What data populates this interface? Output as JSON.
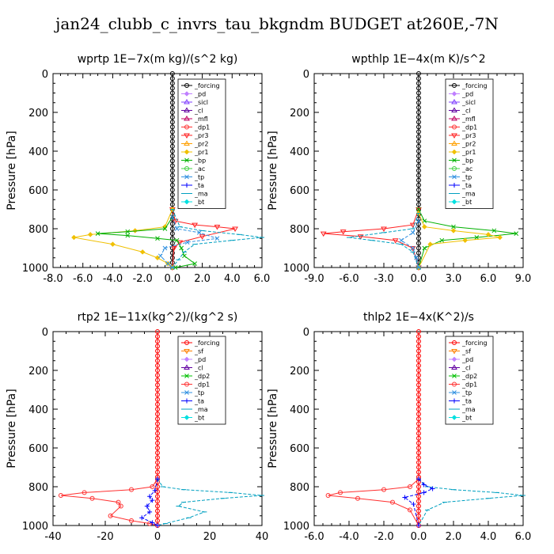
{
  "title": "jan24_clubb_c_invrs_tau_bkgndm  BUDGET at260E,-7N",
  "colors": {
    "_forcing": "#000000",
    "_pd": "#c080ff",
    "_sicl": "#8040ff",
    "_cl": "#6000a0",
    "_mfl": "#c00060",
    "_dp1": "#ff3030",
    "_pr3": "#ff2020",
    "_pr2": "#ffa000",
    "_pr1": "#f0c000",
    "_bp": "#00b000",
    "_ac": "#40d040",
    "_tp": "#3090e0",
    "_ta": "#0000ff",
    "_ma": "#00a0c0",
    "_bt": "#00e0e0",
    "_sf": "#ff8000",
    "_dp2": "#00c000",
    "_forcing_r": "#ff0000"
  },
  "chart_data": [
    {
      "type": "line",
      "title": "wprtp  1E−7x(m kg)/(s^2 kg)",
      "ylabel": "Pressure [hPa]",
      "xlim": [
        -8,
        6
      ],
      "ylim": [
        1000,
        0
      ],
      "xticks": [
        "-8.0",
        "-6.0",
        "-4.0",
        "-2.0",
        "0.0",
        "2.0",
        "4.0",
        "6.0"
      ],
      "xtick_values": [
        -8,
        -6,
        -4,
        -2,
        0,
        2,
        4,
        6
      ],
      "yticks": [
        "0",
        "200",
        "400",
        "600",
        "800",
        "1000"
      ],
      "ytick_values": [
        0,
        200,
        400,
        600,
        800,
        1000
      ],
      "legend": [
        "_forcing",
        "_pd",
        "_sicl",
        "_cl",
        "_mfl",
        "_dp1",
        "_pr3",
        "_pr2",
        "_pr1",
        "_bp",
        "_ac",
        "_tp",
        "_ta",
        "_ma",
        "_bt"
      ],
      "series": [
        {
          "name": "_forcing",
          "x": [
            0,
            0
          ],
          "y": [
            0,
            1000
          ]
        },
        {
          "name": "_pr3",
          "x": [
            0,
            0.2,
            1.5,
            3.0,
            4.2,
            2.0,
            0.5,
            0.1,
            0
          ],
          "y": [
            700,
            760,
            780,
            790,
            800,
            840,
            870,
            900,
            1000
          ]
        },
        {
          "name": "_pr1",
          "x": [
            0,
            -0.5,
            -2.5,
            -5.5,
            -6.6,
            -4.0,
            -2.0,
            -1.0,
            -0.3,
            0
          ],
          "y": [
            700,
            790,
            810,
            830,
            845,
            880,
            920,
            950,
            980,
            1000
          ]
        },
        {
          "name": "_bp",
          "x": [
            0,
            -0.5,
            -3.0,
            -5.0,
            -3.0,
            -1.0,
            0.3,
            0.6,
            0.8,
            1.5,
            0.2
          ],
          "y": [
            740,
            800,
            815,
            825,
            835,
            850,
            860,
            900,
            940,
            980,
            1000
          ]
        },
        {
          "name": "_ma",
          "x": [
            0,
            0.5,
            2.0,
            4.5,
            6.0,
            4.0,
            1.5,
            0.8,
            0.4,
            0
          ],
          "y": [
            700,
            790,
            810,
            830,
            845,
            860,
            880,
            920,
            960,
            1000
          ]
        },
        {
          "name": "_tp",
          "x": [
            0,
            0.3,
            1.8,
            3.0,
            1.0,
            -0.5,
            -0.8,
            -0.3,
            0
          ],
          "y": [
            740,
            800,
            820,
            850,
            870,
            900,
            940,
            980,
            1000
          ]
        }
      ]
    },
    {
      "type": "line",
      "title": "wpthlp  1E−4x(m K)/s^2",
      "ylabel": "Pressure [hPa]",
      "xlim": [
        -9,
        9
      ],
      "ylim": [
        1000,
        0
      ],
      "xticks": [
        "-9.0",
        "-6.0",
        "-3.0",
        "0.0",
        "3.0",
        "6.0",
        "9.0"
      ],
      "xtick_values": [
        -9,
        -6,
        -3,
        0,
        3,
        6,
        9
      ],
      "yticks": [
        "0",
        "200",
        "400",
        "600",
        "800",
        "1000"
      ],
      "ytick_values": [
        0,
        200,
        400,
        600,
        800,
        1000
      ],
      "legend": [
        "_forcing",
        "_pd",
        "_sicl",
        "_cl",
        "_mfl",
        "_dp1",
        "_pr3",
        "_pr2",
        "_pr1",
        "_bp",
        "_ac",
        "_tp",
        "_ta",
        "_ma",
        "_bt"
      ],
      "series": [
        {
          "name": "_forcing",
          "x": [
            0,
            0
          ],
          "y": [
            0,
            1000
          ]
        },
        {
          "name": "_pr3",
          "x": [
            0,
            -0.5,
            -3.0,
            -6.5,
            -8.2,
            -5.0,
            -2.0,
            -0.5,
            0
          ],
          "y": [
            700,
            780,
            800,
            815,
            825,
            840,
            860,
            900,
            1000
          ]
        },
        {
          "name": "_bp",
          "x": [
            0,
            0.5,
            3.0,
            6.5,
            8.4,
            5.0,
            2.0,
            0.5,
            0
          ],
          "y": [
            700,
            760,
            790,
            810,
            825,
            845,
            860,
            900,
            1000
          ]
        },
        {
          "name": "_pr1",
          "x": [
            0,
            0.5,
            3.0,
            6.0,
            7.0,
            4.0,
            1.0,
            0
          ],
          "y": [
            720,
            790,
            810,
            830,
            845,
            860,
            880,
            1000
          ]
        },
        {
          "name": "_ma",
          "x": [
            0,
            -0.5,
            -3.0,
            -6.0,
            -4.0,
            -1.5,
            -0.5,
            0
          ],
          "y": [
            720,
            800,
            820,
            845,
            860,
            880,
            920,
            1000
          ]
        },
        {
          "name": "_tp",
          "x": [
            0,
            -0.5,
            -1.5,
            -0.5,
            -0.2,
            0
          ],
          "y": [
            760,
            820,
            860,
            900,
            950,
            1000
          ]
        }
      ]
    },
    {
      "type": "line",
      "title": "rtp2  1E−11x(kg^2)/(kg^2 s)",
      "ylabel": "Pressure [hPa]",
      "xlim": [
        -40,
        40
      ],
      "ylim": [
        1000,
        0
      ],
      "xticks": [
        "-40",
        "-20",
        "0",
        "20",
        "40"
      ],
      "xtick_values": [
        -40,
        -20,
        0,
        20,
        40
      ],
      "yticks": [
        "0",
        "200",
        "400",
        "600",
        "800",
        "1000"
      ],
      "ytick_values": [
        0,
        200,
        400,
        600,
        800,
        1000
      ],
      "legend": [
        "_forcing",
        "_sf",
        "_pd",
        "_cl",
        "_dp2",
        "_dp1",
        "_tp",
        "_ta",
        "_ma",
        "_bt"
      ],
      "series": [
        {
          "name": "_forcing",
          "x": [
            0,
            0
          ],
          "y": [
            0,
            1000
          ]
        },
        {
          "name": "_dp1",
          "x": [
            0,
            -2,
            -10,
            -28,
            -37,
            -25,
            -15,
            -14,
            -18,
            -10,
            -3,
            0
          ],
          "y": [
            760,
            800,
            815,
            830,
            845,
            860,
            880,
            900,
            950,
            975,
            990,
            1000
          ]
        },
        {
          "name": "_ma",
          "x": [
            0,
            2,
            10,
            28,
            40,
            25,
            10,
            8,
            18,
            12,
            3,
            0
          ],
          "y": [
            760,
            800,
            815,
            830,
            845,
            860,
            880,
            900,
            930,
            960,
            990,
            1000
          ]
        },
        {
          "name": "_ta",
          "x": [
            0,
            -1,
            -3,
            -2,
            -4,
            -3,
            -6,
            -2,
            0
          ],
          "y": [
            760,
            820,
            850,
            870,
            900,
            930,
            960,
            985,
            1000
          ]
        }
      ]
    },
    {
      "type": "line",
      "title": "thlp2  1E−4x(K^2)/s",
      "ylabel": "Pressure [hPa]",
      "xlim": [
        -6,
        6
      ],
      "ylim": [
        1000,
        0
      ],
      "xticks": [
        "-6.0",
        "-4.0",
        "-2.0",
        "0.0",
        "2.0",
        "4.0",
        "6.0"
      ],
      "xtick_values": [
        -6,
        -4,
        -2,
        0,
        2,
        4,
        6
      ],
      "yticks": [
        "0",
        "200",
        "400",
        "600",
        "800",
        "1000"
      ],
      "ytick_values": [
        0,
        200,
        400,
        600,
        800,
        1000
      ],
      "legend": [
        "_forcing",
        "_sf",
        "_pd",
        "_cl",
        "_dp2",
        "_dp1",
        "_tp",
        "_ta",
        "_ma",
        "_bt"
      ],
      "series": [
        {
          "name": "_forcing",
          "x": [
            0,
            0
          ],
          "y": [
            0,
            1000
          ]
        },
        {
          "name": "_dp1",
          "x": [
            0,
            -0.5,
            -2.0,
            -4.5,
            -5.2,
            -3.5,
            -1.5,
            -0.5,
            0
          ],
          "y": [
            760,
            800,
            815,
            830,
            845,
            860,
            880,
            920,
            1000
          ]
        },
        {
          "name": "_ma",
          "x": [
            0,
            0.5,
            2.0,
            4.5,
            6.0,
            4.0,
            1.5,
            0.5,
            0
          ],
          "y": [
            760,
            800,
            815,
            830,
            845,
            860,
            880,
            920,
            1000
          ]
        },
        {
          "name": "_ta",
          "x": [
            0,
            0.3,
            0.8,
            0.3,
            -0.8,
            -0.3,
            0
          ],
          "y": [
            760,
            790,
            810,
            830,
            855,
            890,
            1000
          ]
        }
      ]
    }
  ]
}
